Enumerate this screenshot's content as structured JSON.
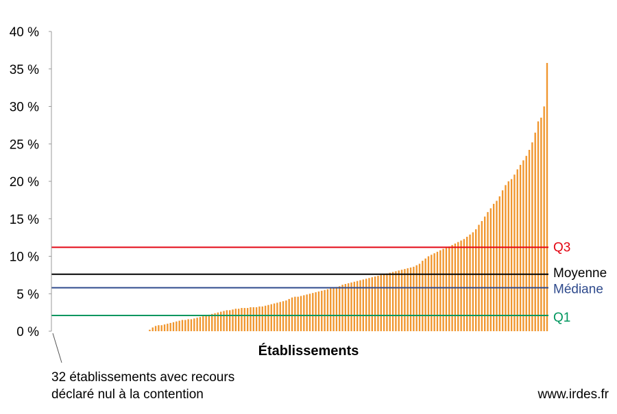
{
  "chart_data": {
    "type": "bar",
    "xlabel": "Établissements",
    "ylabel": "",
    "ylim": [
      0,
      40
    ],
    "yticks": [
      0,
      5,
      10,
      15,
      20,
      25,
      30,
      35,
      40
    ],
    "ytick_labels": [
      "0 %",
      "5 %",
      "10 %",
      "15 %",
      "20 %",
      "25 %",
      "30 %",
      "35 %",
      "40 %"
    ],
    "zero_count": 32,
    "values": [
      0.2,
      0.5,
      0.7,
      0.8,
      0.8,
      0.9,
      1.0,
      1.1,
      1.2,
      1.3,
      1.4,
      1.5,
      1.5,
      1.6,
      1.6,
      1.7,
      1.8,
      1.9,
      2.0,
      2.1,
      2.2,
      2.3,
      2.4,
      2.5,
      2.6,
      2.7,
      2.8,
      2.8,
      2.9,
      3.0,
      3.0,
      3.1,
      3.1,
      3.1,
      3.2,
      3.2,
      3.2,
      3.3,
      3.3,
      3.4,
      3.5,
      3.6,
      3.7,
      3.8,
      3.9,
      4.0,
      4.1,
      4.3,
      4.5,
      4.6,
      4.6,
      4.7,
      4.8,
      4.9,
      5.0,
      5.1,
      5.2,
      5.3,
      5.4,
      5.5,
      5.6,
      5.7,
      5.8,
      5.9,
      6.0,
      6.2,
      6.3,
      6.4,
      6.5,
      6.6,
      6.7,
      6.8,
      6.9,
      7.0,
      7.1,
      7.2,
      7.3,
      7.4,
      7.5,
      7.6,
      7.7,
      7.8,
      7.9,
      8.0,
      8.1,
      8.2,
      8.3,
      8.4,
      8.5,
      8.6,
      8.8,
      9.0,
      9.4,
      9.7,
      10.0,
      10.2,
      10.4,
      10.6,
      10.8,
      11.0,
      11.1,
      11.3,
      11.5,
      11.7,
      11.9,
      12.1,
      12.3,
      12.6,
      12.9,
      13.2,
      13.6,
      14.2,
      14.7,
      15.3,
      15.9,
      16.4,
      17.0,
      17.4,
      18.0,
      18.8,
      19.5,
      20.0,
      20.3,
      20.9,
      21.6,
      22.2,
      22.8,
      23.4,
      24.2,
      25.2,
      26.5,
      28.0,
      28.5,
      30.0,
      35.8
    ],
    "reference_lines": [
      {
        "name": "Q3",
        "value": 11.2,
        "color": "#e30613"
      },
      {
        "name": "Moyenne",
        "value": 7.6,
        "color": "#000000"
      },
      {
        "name": "Médiane",
        "value": 5.8,
        "color": "#2e4a8c"
      },
      {
        "name": "Q1",
        "value": 2.1,
        "color": "#00965e"
      }
    ],
    "bar_color": "#f0962e",
    "grid": false,
    "annotation": {
      "line1": "32 établissements avec recours",
      "line2": "déclaré nul à la contention"
    }
  },
  "source": "www.irdes.fr"
}
